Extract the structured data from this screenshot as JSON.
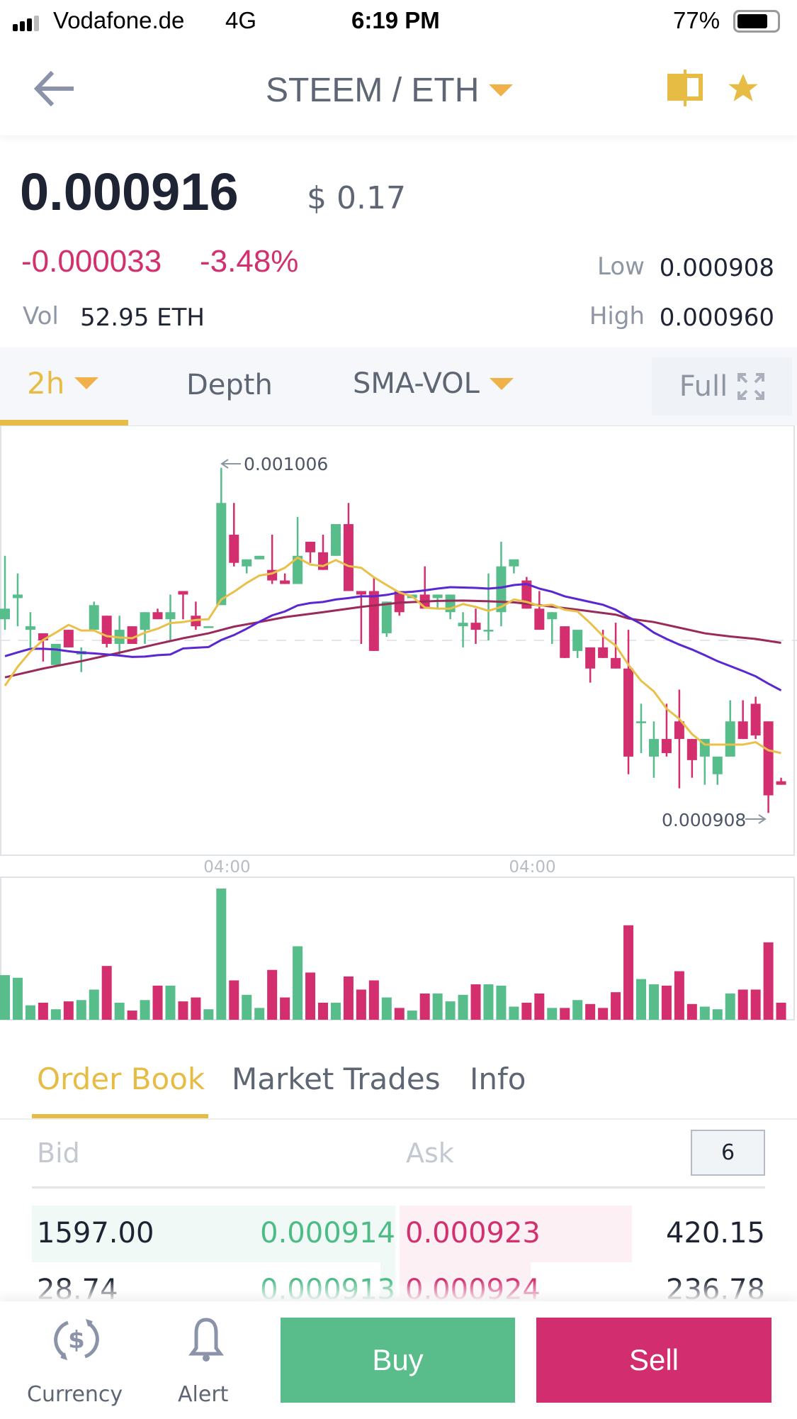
{
  "status_bar": {
    "carrier": "Vodafone.de",
    "network": "4G",
    "time": "6:19 PM",
    "battery": "77%",
    "battery_level": 0.77
  },
  "header": {
    "pair": "STEEM / ETH",
    "icons": [
      "back-arrow-icon",
      "chevron-down-icon",
      "candlestick-icon",
      "star-icon"
    ]
  },
  "ticker": {
    "last_price": "0.000916",
    "usd_price": "$ 0.17",
    "change": "-0.000033",
    "change_pct": "-3.48%",
    "vol_label": "Vol",
    "vol_value": "52.95 ETH",
    "low_label": "Low",
    "low_value": "0.000908",
    "high_label": "High",
    "high_value": "0.000960"
  },
  "chart_tabs": {
    "interval": "2h",
    "depth": "Depth",
    "indicator": "SMA-VOL",
    "full": "Full"
  },
  "colors": {
    "up": "#57bd8b",
    "down": "#d32e6e",
    "accent": "#e6bc45",
    "ma_short": "#e9c04a",
    "ma_mid": "#5a27d1",
    "ma_long": "#9a2a5a"
  },
  "chart_data": {
    "type": "candlestick",
    "interval": "2h",
    "ylim": [
      0.000896,
      0.001018
    ],
    "reference_line": 0.000957,
    "max_label": "0.001006",
    "min_label": "0.000908",
    "x_ticks": [
      {
        "label": "04:00",
        "index": 17.5
      },
      {
        "label": "04:00",
        "index": 41.5
      }
    ],
    "candles": [
      [
        0.000963,
        0.000981,
        0.00096,
        0.000966
      ],
      [
        0.000969,
        0.000976,
        0.000961,
        0.00097
      ],
      [
        0.00096,
        0.000965,
        0.000955,
        0.000961
      ],
      [
        0.000959,
        0.000959,
        0.000951,
        0.000957
      ],
      [
        0.00095,
        0.000956,
        0.00095,
        0.000956
      ],
      [
        0.00096,
        0.00096,
        0.000955,
        0.000955
      ],
      [
        0.000953,
        0.000955,
        0.000948,
        0.000954
      ],
      [
        0.00096,
        0.000968,
        0.00096,
        0.000967
      ],
      [
        0.000964,
        0.000964,
        0.000955,
        0.000956
      ],
      [
        0.000956,
        0.000964,
        0.000953,
        0.00096
      ],
      [
        0.000961,
        0.000961,
        0.000956,
        0.000956
      ],
      [
        0.00096,
        0.000965,
        0.000956,
        0.000965
      ],
      [
        0.000965,
        0.000966,
        0.000963,
        0.000963
      ],
      [
        0.000963,
        0.00097,
        0.000957,
        0.000965
      ],
      [
        0.000971,
        0.000971,
        0.000963,
        0.00097
      ],
      [
        0.000964,
        0.000968,
        0.00096,
        0.000961
      ],
      [
        0.000961,
        0.000961,
        0.000961,
        0.000961
      ],
      [
        0.000967,
        0.001006,
        0.000967,
        0.000996
      ],
      [
        0.000987,
        0.000996,
        0.000978,
        0.000979
      ],
      [
        0.000978,
        0.00098,
        0.000976,
        0.00098
      ],
      [
        0.00098,
        0.000981,
        0.00098,
        0.000981
      ],
      [
        0.000977,
        0.000987,
        0.000973,
        0.000974
      ],
      [
        0.000974,
        0.000976,
        0.000973,
        0.000973
      ],
      [
        0.000973,
        0.000992,
        0.000973,
        0.000981
      ],
      [
        0.000985,
        0.000985,
        0.000979,
        0.000982
      ],
      [
        0.000982,
        0.000987,
        0.000977,
        0.000977
      ],
      [
        0.000981,
        0.00099,
        0.000981,
        0.00099
      ],
      [
        0.00099,
        0.000996,
        0.000971,
        0.000971
      ],
      [
        0.000971,
        0.000971,
        0.000956,
        0.00097
      ],
      [
        0.000971,
        0.000975,
        0.000954,
        0.000954
      ],
      [
        0.000959,
        0.000968,
        0.000958,
        0.000968
      ],
      [
        0.000971,
        0.000971,
        0.000964,
        0.000965
      ],
      [
        0.000969,
        0.00097,
        0.000969,
        0.00097
      ],
      [
        0.00097,
        0.000978,
        0.000966,
        0.000966
      ],
      [
        0.000969,
        0.00097,
        0.000966,
        0.00097
      ],
      [
        0.000965,
        0.00097,
        0.000963,
        0.00097
      ],
      [
        0.000961,
        0.000965,
        0.000955,
        0.000962
      ],
      [
        0.000962,
        0.000966,
        0.000956,
        0.00096
      ],
      [
        0.00096,
        0.000976,
        0.000957,
        0.00096
      ],
      [
        0.000965,
        0.000985,
        0.000961,
        0.000978
      ],
      [
        0.000978,
        0.00098,
        0.000976,
        0.00098
      ],
      [
        0.000974,
        0.000975,
        0.000966,
        0.000966
      ],
      [
        0.000966,
        0.000971,
        0.00096,
        0.00096
      ],
      [
        0.000963,
        0.000965,
        0.000956,
        0.000965
      ],
      [
        0.000961,
        0.000961,
        0.000952,
        0.000952
      ],
      [
        0.000954,
        0.00096,
        0.000952,
        0.00096
      ],
      [
        0.000955,
        0.000955,
        0.000945,
        0.000949
      ],
      [
        0.000955,
        0.00096,
        0.000952,
        0.000952
      ],
      [
        0.000952,
        0.000962,
        0.000949,
        0.000949
      ],
      [
        0.000949,
        0.00096,
        0.000919,
        0.000924
      ],
      [
        0.000934,
        0.000939,
        0.000925,
        0.000934
      ],
      [
        0.000924,
        0.000934,
        0.000918,
        0.000929
      ],
      [
        0.000929,
        0.000939,
        0.000924,
        0.000925
      ],
      [
        0.000934,
        0.000943,
        0.000915,
        0.000929
      ],
      [
        0.000929,
        0.000929,
        0.000918,
        0.000923
      ],
      [
        0.000924,
        0.000929,
        0.000916,
        0.000929
      ],
      [
        0.000919,
        0.000924,
        0.000916,
        0.000924
      ],
      [
        0.000924,
        0.00094,
        0.000924,
        0.000934
      ],
      [
        0.000934,
        0.00094,
        0.000929,
        0.000929
      ],
      [
        0.000939,
        0.000941,
        0.000929,
        0.00093
      ],
      [
        0.000934,
        0.000934,
        0.000908,
        0.000913
      ],
      [
        0.000917,
        0.000918,
        0.000916,
        0.000916
      ]
    ],
    "ma_short": [
      944.1,
      949.5,
      953.8,
      957.1,
      959.2,
      961.4,
      959.8,
      959.8,
      958.2,
      957.8,
      957.6,
      959.2,
      960.3,
      961.9,
      962.2,
      962.8,
      963.0,
      968.6,
      970.8,
      973.3,
      975.4,
      976.0,
      977.6,
      980.5,
      978.5,
      978.1,
      979.8,
      978.1,
      977.6,
      974.9,
      972.7,
      970.6,
      969.5,
      966.3,
      966.0,
      966.0,
      967.3,
      966.5,
      965.4,
      966.5,
      968.6,
      967.9,
      966.8,
      967.1,
      965.7,
      965.2,
      961.9,
      958.2,
      955.5,
      950.1,
      945.5,
      942.5,
      937.6,
      934.7,
      930.4,
      927.4,
      927.4,
      927.4,
      927.4,
      928.1,
      925.8,
      925.0
    ],
    "ma_mid": [
      952.5,
      953.6,
      954.6,
      954.6,
      954.4,
      953.9,
      953.5,
      953.3,
      953.0,
      952.7,
      952.3,
      952.4,
      952.8,
      953.0,
      954.7,
      954.9,
      955.1,
      957.1,
      958.5,
      960.3,
      962.3,
      964.1,
      965.2,
      966.9,
      967.6,
      967.9,
      968.6,
      969.0,
      969.5,
      969.5,
      969.9,
      970.6,
      970.8,
      971.2,
      971.7,
      972.1,
      972.0,
      971.9,
      971.7,
      972.0,
      972.7,
      973.0,
      971.7,
      970.8,
      969.5,
      968.7,
      967.9,
      967.1,
      965.7,
      963.6,
      961.7,
      959.2,
      957.4,
      955.8,
      954.4,
      952.8,
      951.1,
      949.7,
      948.3,
      946.8,
      944.7,
      942.8
    ],
    "ma_long": [
      [
        0,
        946.5
      ],
      [
        3,
        949.0
      ],
      [
        6,
        951.1
      ],
      [
        9,
        953.5
      ],
      [
        12,
        956.0
      ],
      [
        14,
        957.6
      ],
      [
        16,
        959.0
      ],
      [
        18,
        960.9
      ],
      [
        20,
        962.2
      ],
      [
        22,
        963.6
      ],
      [
        25,
        965.0
      ],
      [
        28,
        966.5
      ],
      [
        30,
        967.3
      ],
      [
        31,
        967.7
      ],
      [
        34,
        968.2
      ],
      [
        36,
        968.3
      ],
      [
        38,
        968.1
      ],
      [
        40,
        967.8
      ],
      [
        42,
        967.0
      ],
      [
        45,
        965.7
      ],
      [
        48,
        964.3
      ],
      [
        49,
        963.2
      ],
      [
        51,
        962.2
      ],
      [
        53,
        960.6
      ],
      [
        55,
        959.0
      ],
      [
        57,
        958.1
      ],
      [
        59,
        957.4
      ],
      [
        61,
        956.3
      ]
    ],
    "ma_unit": "1e-6 ETH",
    "volume_relative": [
      34,
      32,
      11,
      13,
      8,
      14,
      15,
      23,
      41,
      13,
      7,
      15,
      26,
      26,
      14,
      17,
      8,
      100,
      30,
      19,
      9,
      38,
      17,
      56,
      36,
      13,
      13,
      33,
      23,
      30,
      17,
      9,
      7,
      20,
      20,
      14,
      19,
      27,
      27,
      26,
      10,
      13,
      20,
      9,
      9,
      15,
      12,
      9,
      21,
      72,
      31,
      27,
      26,
      37,
      12,
      10,
      8,
      20,
      23,
      23,
      59,
      13
    ]
  },
  "book_tabs": {
    "order_book": "Order Book",
    "market_trades": "Market Trades",
    "info": "Info"
  },
  "order_book": {
    "bid_label": "Bid",
    "ask_label": "Ask",
    "precision": "6",
    "rows": [
      {
        "bid_qty": "1597.00",
        "bid_price": "0.000914",
        "ask_price": "0.000923",
        "ask_qty": "420.15",
        "bid_depth": 1.0,
        "ask_depth": 0.64
      },
      {
        "bid_qty": "28.74",
        "bid_price": "0.000913",
        "ask_price": "0.000924",
        "ask_qty": "236.78",
        "bid_depth": 0.04,
        "ask_depth": 0.36
      }
    ]
  },
  "bottom_bar": {
    "currency": "Currency",
    "alert": "Alert",
    "buy": "Buy",
    "sell": "Sell"
  }
}
